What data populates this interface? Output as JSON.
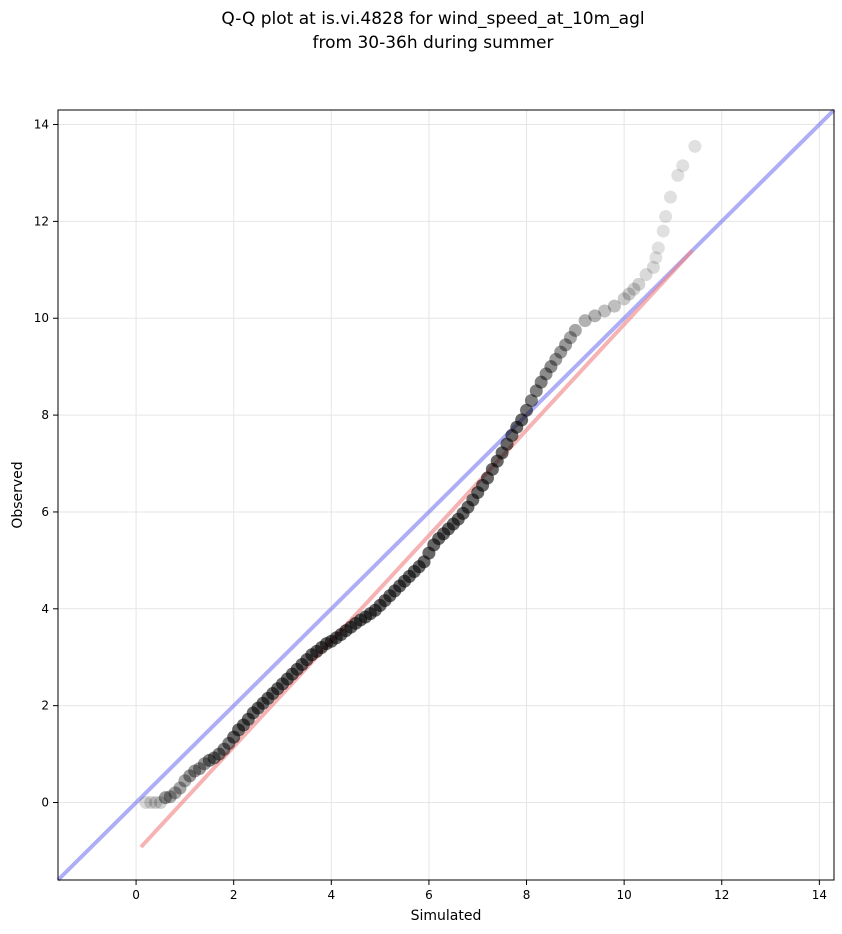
{
  "chart_data": {
    "type": "scatter",
    "title_line1": "Q-Q plot at is.vi.4828 for wind_speed_at_10m_agl",
    "title_line2": "from 30-36h during summer",
    "xlabel": "Simulated",
    "ylabel": "Observed",
    "xlim": [
      -1.6,
      14.3
    ],
    "ylim": [
      -1.6,
      14.3
    ],
    "xticks": [
      0,
      2,
      4,
      6,
      8,
      10,
      12,
      14
    ],
    "yticks": [
      0,
      2,
      4,
      6,
      8,
      10,
      12,
      14
    ],
    "grid": true,
    "colors": {
      "points": "#000000",
      "identity_line": "#6b6bef",
      "fit_line": "#f08080",
      "grid": "#e6e6e6"
    },
    "identity_line": {
      "x": [
        -1.6,
        14.3
      ],
      "y": [
        -1.6,
        14.3
      ]
    },
    "fit_line": {
      "x": [
        0.1,
        11.4
      ],
      "y": [
        -0.92,
        11.4
      ]
    },
    "points": {
      "x": [
        0.2,
        0.3,
        0.4,
        0.5,
        0.6,
        0.7,
        0.8,
        0.9,
        1.0,
        1.1,
        1.2,
        1.3,
        1.4,
        1.5,
        1.6,
        1.7,
        1.8,
        1.9,
        2.0,
        2.1,
        2.2,
        2.3,
        2.4,
        2.5,
        2.6,
        2.7,
        2.8,
        2.9,
        3.0,
        3.1,
        3.2,
        3.3,
        3.4,
        3.5,
        3.6,
        3.7,
        3.8,
        3.9,
        4.0,
        4.1,
        4.2,
        4.3,
        4.4,
        4.5,
        4.6,
        4.7,
        4.8,
        4.9,
        5.0,
        5.1,
        5.2,
        5.3,
        5.4,
        5.5,
        5.6,
        5.7,
        5.8,
        5.9,
        6.0,
        6.1,
        6.2,
        6.3,
        6.4,
        6.5,
        6.6,
        6.7,
        6.8,
        6.9,
        7.0,
        7.1,
        7.2,
        7.3,
        7.4,
        7.5,
        7.6,
        7.7,
        7.8,
        7.9,
        8.0,
        8.1,
        8.2,
        8.3,
        8.4,
        8.5,
        8.6,
        8.7,
        8.8,
        8.9,
        9.0,
        9.2,
        9.4,
        9.6,
        9.8,
        10.0,
        10.1,
        10.2,
        10.3,
        10.45,
        10.6,
        10.65,
        10.7,
        10.8,
        10.85,
        10.95,
        11.1,
        11.2,
        11.45
      ],
      "y": [
        0.0,
        0.0,
        0.0,
        0.0,
        0.1,
        0.12,
        0.2,
        0.3,
        0.45,
        0.55,
        0.65,
        0.7,
        0.8,
        0.87,
        0.92,
        1.0,
        1.1,
        1.22,
        1.35,
        1.5,
        1.6,
        1.72,
        1.85,
        1.95,
        2.05,
        2.15,
        2.25,
        2.35,
        2.45,
        2.55,
        2.65,
        2.75,
        2.85,
        2.95,
        3.05,
        3.12,
        3.2,
        3.28,
        3.33,
        3.4,
        3.47,
        3.55,
        3.62,
        3.7,
        3.77,
        3.83,
        3.9,
        3.97,
        4.07,
        4.17,
        4.27,
        4.37,
        4.47,
        4.57,
        4.67,
        4.77,
        4.87,
        4.97,
        5.15,
        5.32,
        5.45,
        5.55,
        5.65,
        5.75,
        5.85,
        5.97,
        6.1,
        6.25,
        6.4,
        6.55,
        6.7,
        6.88,
        7.05,
        7.22,
        7.4,
        7.58,
        7.75,
        7.9,
        8.1,
        8.3,
        8.5,
        8.68,
        8.85,
        9.0,
        9.15,
        9.3,
        9.45,
        9.6,
        9.75,
        9.95,
        10.05,
        10.15,
        10.25,
        10.4,
        10.5,
        10.6,
        10.7,
        10.9,
        11.05,
        11.25,
        11.45,
        11.8,
        12.1,
        12.5,
        12.95,
        13.15,
        13.55
      ],
      "alpha": [
        0.15,
        0.15,
        0.18,
        0.18,
        0.4,
        0.35,
        0.35,
        0.35,
        0.35,
        0.4,
        0.4,
        0.4,
        0.4,
        0.5,
        0.5,
        0.5,
        0.5,
        0.5,
        0.6,
        0.6,
        0.6,
        0.6,
        0.6,
        0.6,
        0.6,
        0.6,
        0.6,
        0.6,
        0.6,
        0.6,
        0.6,
        0.6,
        0.6,
        0.6,
        0.6,
        0.6,
        0.6,
        0.6,
        0.6,
        0.6,
        0.6,
        0.6,
        0.6,
        0.6,
        0.6,
        0.6,
        0.6,
        0.6,
        0.6,
        0.6,
        0.6,
        0.6,
        0.6,
        0.6,
        0.6,
        0.6,
        0.6,
        0.6,
        0.6,
        0.6,
        0.6,
        0.6,
        0.6,
        0.6,
        0.6,
        0.6,
        0.6,
        0.6,
        0.6,
        0.6,
        0.6,
        0.6,
        0.6,
        0.6,
        0.6,
        0.6,
        0.6,
        0.6,
        0.55,
        0.5,
        0.5,
        0.5,
        0.45,
        0.45,
        0.4,
        0.4,
        0.4,
        0.35,
        0.35,
        0.3,
        0.3,
        0.25,
        0.25,
        0.2,
        0.2,
        0.18,
        0.18,
        0.15,
        0.15,
        0.12,
        0.12,
        0.12,
        0.12,
        0.12,
        0.12,
        0.12,
        0.12
      ]
    }
  }
}
